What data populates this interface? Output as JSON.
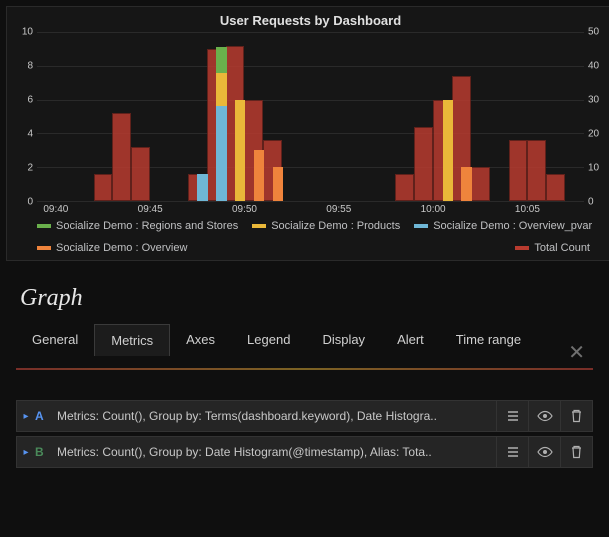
{
  "chart": {
    "title": "User Requests by Dashboard",
    "background": "#161616",
    "grid_color": "#2a2a2a",
    "axis_color": "#4a4a4a",
    "text_color": "#c8c8c8",
    "left_axis": {
      "min": 0,
      "max": 10,
      "ticks": [
        0,
        2,
        4,
        6,
        8,
        10
      ]
    },
    "right_axis": {
      "min": 0,
      "max": 50,
      "ticks": [
        0,
        10,
        20,
        30,
        40,
        50
      ]
    },
    "x_ticks": [
      "09:40",
      "09:45",
      "09:50",
      "09:55",
      "10:00",
      "10:05"
    ],
    "x_domain_min": 39,
    "x_domain_max": 68,
    "series": [
      {
        "name": "Socialize Demo : Regions and Stores",
        "color": "#6ab04c"
      },
      {
        "name": "Socialize Demo : Products",
        "color": "#eab839"
      },
      {
        "name": "Socialize Demo : Overview_pvar",
        "color": "#6fb7d6"
      },
      {
        "name": "Socialize Demo : Overview",
        "color": "#ef843c"
      },
      {
        "name": "Total Count",
        "color": "#b83b2f"
      }
    ],
    "total_bars": [
      {
        "x": 42,
        "v": 8
      },
      {
        "x": 43,
        "v": 26
      },
      {
        "x": 44,
        "v": 16
      },
      {
        "x": 47,
        "v": 8
      },
      {
        "x": 48,
        "v": 45
      },
      {
        "x": 49,
        "v": 46
      },
      {
        "x": 50,
        "v": 30
      },
      {
        "x": 51,
        "v": 18
      },
      {
        "x": 58,
        "v": 8
      },
      {
        "x": 59,
        "v": 22
      },
      {
        "x": 60,
        "v": 30
      },
      {
        "x": 61,
        "v": 37
      },
      {
        "x": 62,
        "v": 10
      },
      {
        "x": 64,
        "v": 18
      },
      {
        "x": 65,
        "v": 18
      },
      {
        "x": 66,
        "v": 8
      }
    ],
    "stacks": [
      {
        "x": 47.5,
        "parts": [
          {
            "c": "#6fb7d6",
            "v": 1.6
          }
        ]
      },
      {
        "x": 48.5,
        "parts": [
          {
            "c": "#6fb7d6",
            "v": 5.6
          },
          {
            "c": "#eab839",
            "v": 2.0
          },
          {
            "c": "#6ab04c",
            "v": 1.5
          }
        ]
      },
      {
        "x": 49.5,
        "parts": [
          {
            "c": "#eab839",
            "v": 6.0
          }
        ]
      },
      {
        "x": 50.5,
        "parts": [
          {
            "c": "#ef843c",
            "v": 3.0
          }
        ]
      },
      {
        "x": 51.5,
        "parts": [
          {
            "c": "#ef843c",
            "v": 2.0
          }
        ]
      },
      {
        "x": 60.5,
        "parts": [
          {
            "c": "#eab839",
            "v": 6.0
          }
        ]
      },
      {
        "x": 61.5,
        "parts": [
          {
            "c": "#ef843c",
            "v": 2.0
          }
        ]
      }
    ]
  },
  "editor": {
    "heading": "Graph",
    "tabs": [
      "General",
      "Metrics",
      "Axes",
      "Legend",
      "Display",
      "Alert",
      "Time range"
    ],
    "active_tab": 1,
    "close_label": "✕",
    "queries": [
      {
        "id": "A",
        "color_class": "a",
        "text": "Metrics: Count(), Group by: Terms(dashboard.keyword), Date Histogra.."
      },
      {
        "id": "B",
        "color_class": "b",
        "text": "Metrics: Count(), Group by: Date Histogram(@timestamp), Alias: Tota.."
      }
    ],
    "icons": {
      "menu": "menu-icon",
      "eye": "eye-icon",
      "trash": "trash-icon"
    }
  }
}
